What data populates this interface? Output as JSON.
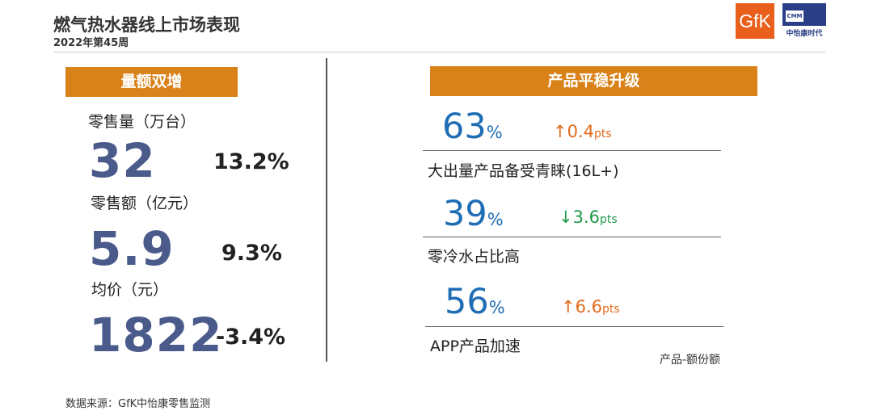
{
  "header": {
    "title": "燃气热水器线上市场表现",
    "subtitle": "2022年第45周",
    "logo_gfk": "GfK",
    "logo_cmm": "CMM",
    "logo_cmm_cn": "中怡康时代"
  },
  "left": {
    "banner": "量额双增",
    "metrics": [
      {
        "label": "零售量（万台）",
        "value": "32",
        "growth": "13.2%"
      },
      {
        "label": "零售额（亿元）",
        "value": "5.9",
        "growth": "9.3%"
      },
      {
        "label": "均价（元）",
        "value": "1822",
        "growth": "-3.4%"
      }
    ]
  },
  "right": {
    "banner": "产品平稳升级",
    "items": [
      {
        "value": "63",
        "sign": "%",
        "arrow": "↑",
        "change": "0.4",
        "unit": "pts",
        "direction": "up",
        "desc": "大出量产品备受青睐(16L+)"
      },
      {
        "value": "39",
        "sign": "%",
        "arrow": "↓",
        "change": "3.6",
        "unit": "pts",
        "direction": "down",
        "desc": "零冷水占比高"
      },
      {
        "value": "56",
        "sign": "%",
        "arrow": "↑",
        "change": "6.6",
        "unit": "pts",
        "direction": "up",
        "desc": "APP产品加速"
      }
    ],
    "note": "产品-额份额"
  },
  "footer": {
    "source": "数据来源：GfK中怡康零售监测"
  },
  "colors": {
    "banner": "#d9821a",
    "big_number": "#4a5a8a",
    "percent": "#1f6db5",
    "up": "#e36a1a",
    "down": "#1e9a48"
  }
}
